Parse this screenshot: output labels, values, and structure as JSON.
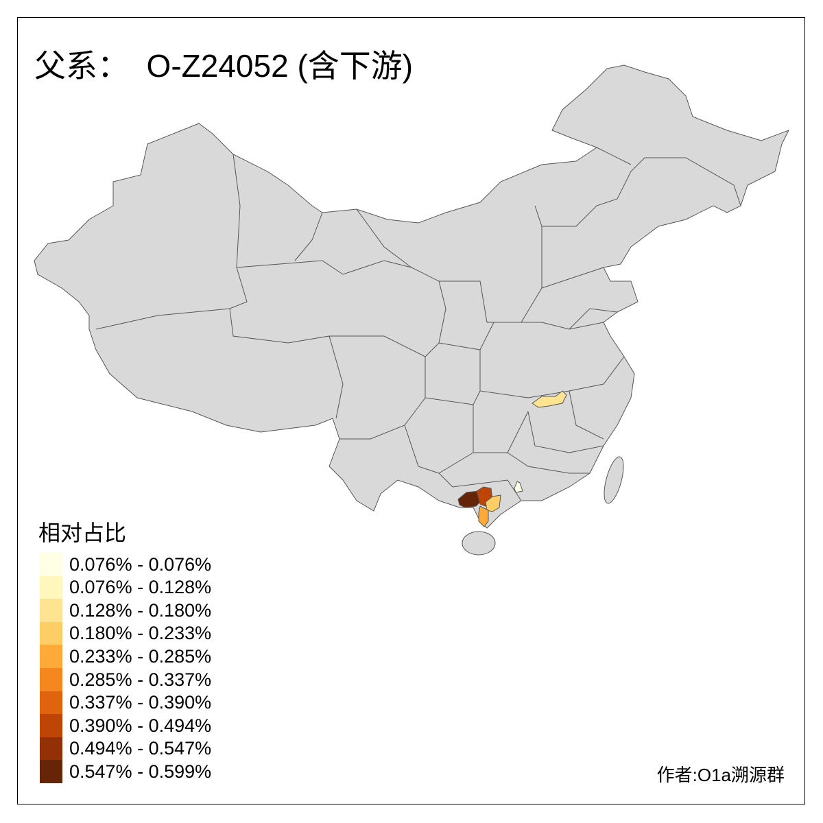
{
  "title": "父系：  O-Z24052 (含下游)",
  "legend": {
    "title": "相对占比",
    "items": [
      {
        "label": "0.076% - 0.076%",
        "color": "#FFFFE5"
      },
      {
        "label": "0.076% - 0.128%",
        "color": "#FFF7BC"
      },
      {
        "label": "0.128% - 0.180%",
        "color": "#FEE391"
      },
      {
        "label": "0.180% - 0.233%",
        "color": "#FDCE66"
      },
      {
        "label": "0.233% - 0.285%",
        "color": "#FDAA3A"
      },
      {
        "label": "0.285% - 0.337%",
        "color": "#F4881F"
      },
      {
        "label": "0.337% - 0.390%",
        "color": "#E0640E"
      },
      {
        "label": "0.390% - 0.494%",
        "color": "#BE4506"
      },
      {
        "label": "0.494% - 0.547%",
        "color": "#943005"
      },
      {
        "label": "0.547% - 0.599%",
        "color": "#662506"
      }
    ]
  },
  "map": {
    "base_color": "#D9D9D9",
    "border_color": "#555555"
  },
  "credit": "作者:O1a溯源群"
}
